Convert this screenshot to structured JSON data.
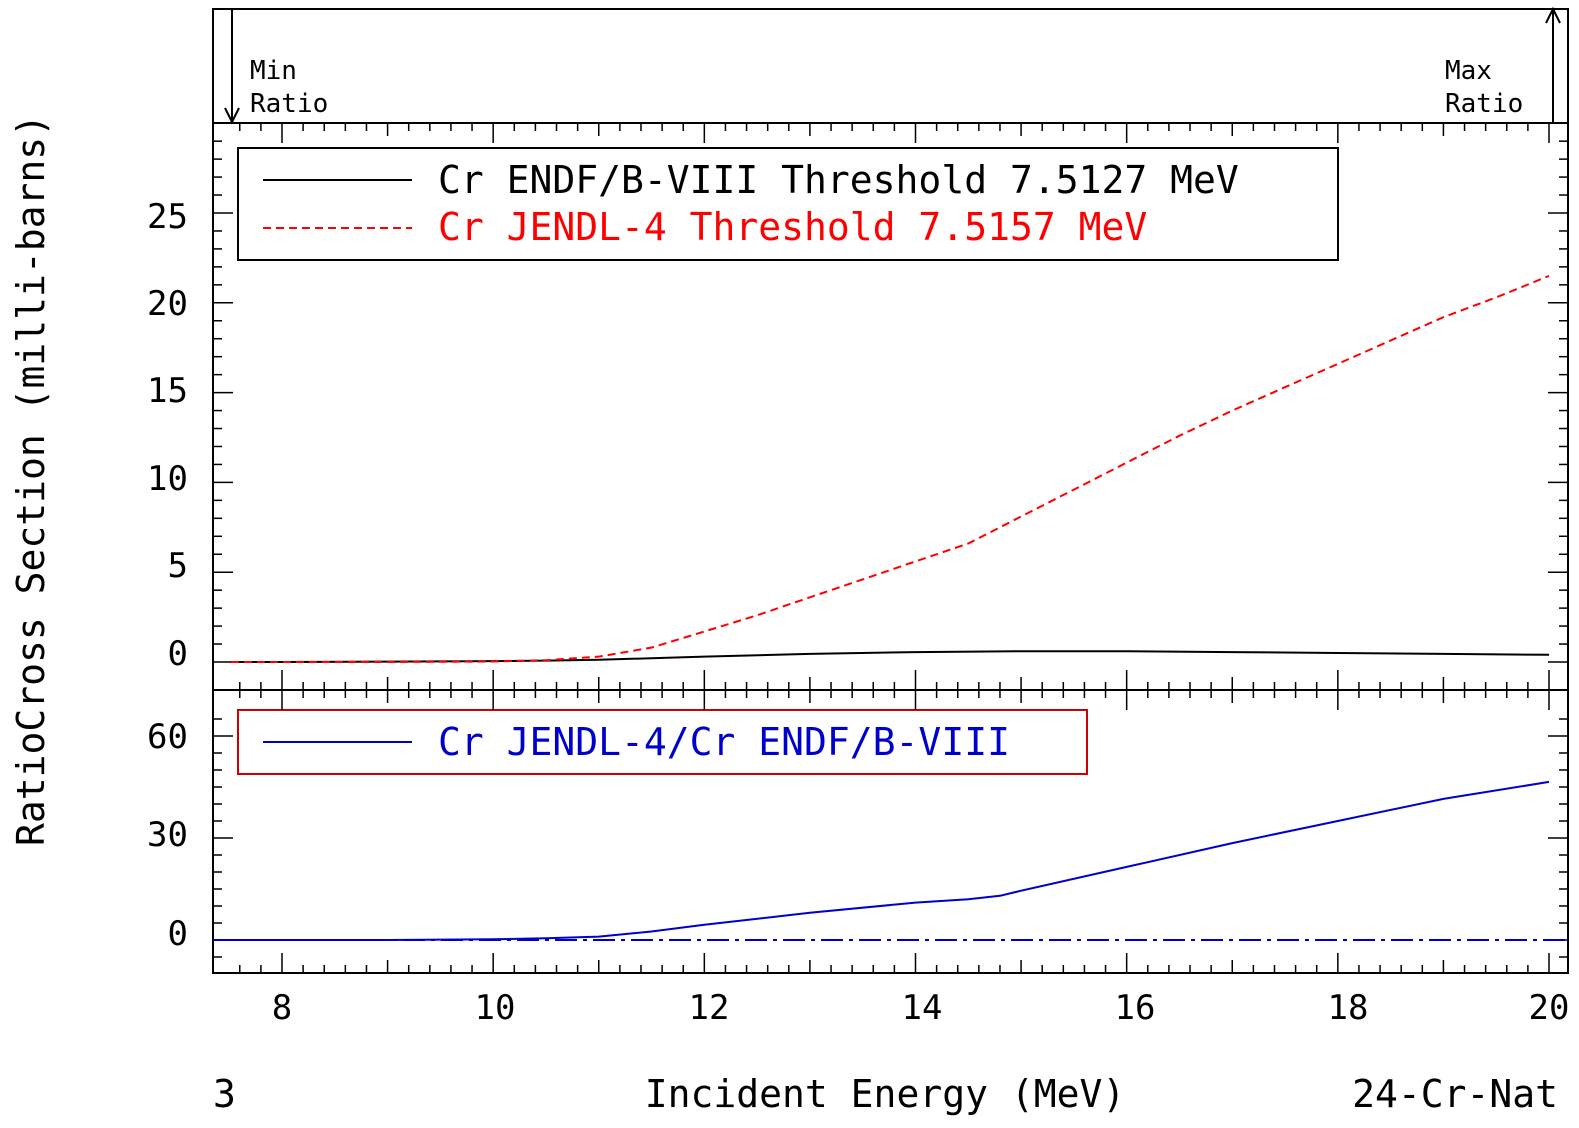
{
  "chart_data": {
    "type": "line",
    "ylabel": "RatioCross Section (milli-barns)",
    "xlabel": "Incident Energy (MeV)",
    "bottom_left_label": "3",
    "bottom_right_label": "24-Cr-Nat",
    "xlim": [
      7.5127,
      20
    ],
    "x_ticks": [
      "8",
      "10",
      "12",
      "14",
      "16",
      "18",
      "20"
    ],
    "ratio_band": {
      "min_label": [
        "Min",
        "Ratio"
      ],
      "max_label": [
        "Max",
        "Ratio"
      ]
    },
    "panels": [
      {
        "name": "cross-section",
        "ylim": [
          -0.5,
          30
        ],
        "y_ticks": [
          "25",
          "20",
          "15",
          "10",
          "5",
          "0"
        ],
        "legend": [
          {
            "text": "Cr ENDF/B-VIII Threshold 7.5127 MeV",
            "color": "#000000",
            "dash": "solid"
          },
          {
            "text": "Cr JENDL-4 Threshold 7.5157 MeV",
            "color": "#ff0000",
            "dash": "dashed"
          }
        ],
        "series": [
          {
            "color": "#000000",
            "dash": "solid",
            "x": [
              7.5127,
              8,
              9,
              10,
              10.5,
              11,
              12,
              13,
              14,
              15,
              16,
              17,
              18,
              19,
              20
            ],
            "y": [
              0,
              0,
              0.02,
              0.05,
              0.08,
              0.12,
              0.3,
              0.45,
              0.55,
              0.6,
              0.6,
              0.55,
              0.5,
              0.45,
              0.4
            ]
          },
          {
            "color": "#ff0000",
            "dash": "dashed",
            "x": [
              7.5157,
              9,
              10,
              10.5,
              11,
              11.5,
              12,
              12.5,
              13,
              13.5,
              14,
              14.5,
              15,
              15.5,
              16,
              16.5,
              17,
              17.5,
              18,
              18.5,
              19,
              19.5,
              20
            ],
            "y": [
              0,
              0,
              0.03,
              0.1,
              0.3,
              0.8,
              1.7,
              2.6,
              3.6,
              4.6,
              5.6,
              6.6,
              8.1,
              9.6,
              11.1,
              12.6,
              14.0,
              15.3,
              16.6,
              17.9,
              19.2,
              20.3,
              21.5
            ]
          }
        ]
      },
      {
        "name": "ratio",
        "ylim": [
          -7,
          67
        ],
        "y_ticks": [
          "60",
          "30",
          "0"
        ],
        "reference_line": {
          "y": 0,
          "color": "#0000cc",
          "dash": "dashdot"
        },
        "legend": [
          {
            "text": "Cr JENDL-4/Cr ENDF/B-VIII",
            "color": "#0000cc",
            "dash": "solid"
          }
        ],
        "series": [
          {
            "color": "#0000cc",
            "dash": "solid",
            "x": [
              7.5127,
              9,
              10,
              10.5,
              11,
              11.5,
              12,
              13,
              14,
              14.5,
              14.8,
              15,
              16,
              17,
              18,
              19,
              20
            ],
            "y": [
              0,
              0,
              0.2,
              0.5,
              1,
              2.5,
              4.5,
              8,
              11,
              12,
              13,
              14.5,
              21.5,
              28.5,
              35,
              41.5,
              46.5
            ]
          }
        ]
      }
    ]
  }
}
